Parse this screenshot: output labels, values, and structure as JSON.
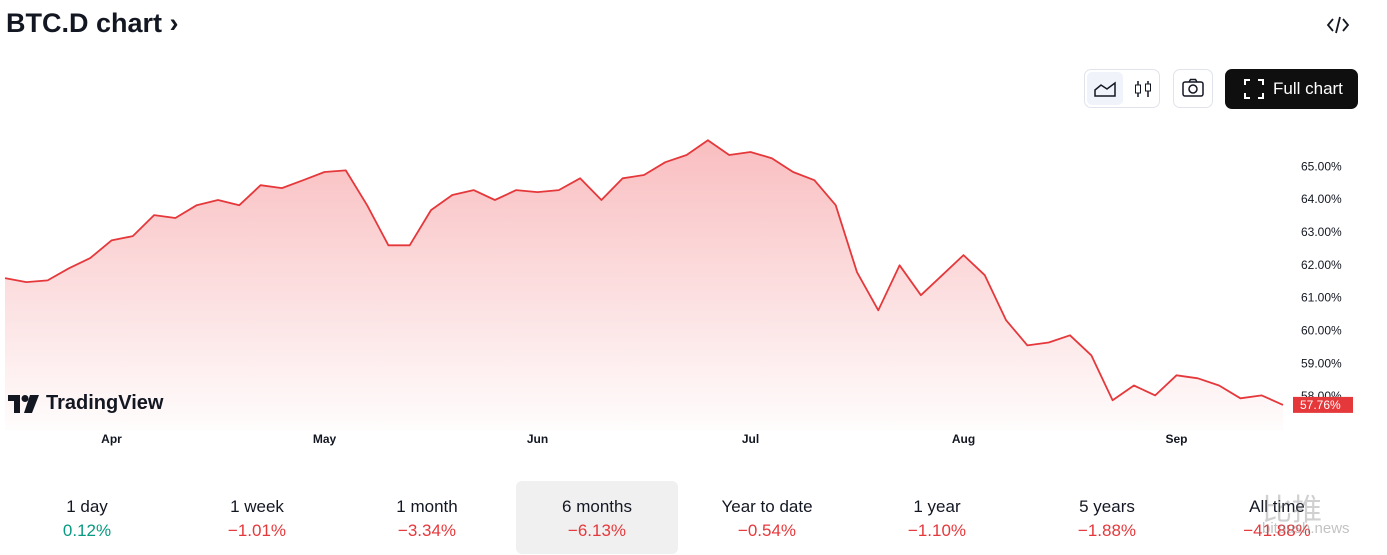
{
  "header": {
    "title": "BTC.D chart ›",
    "full_chart": "Full chart"
  },
  "branding": {
    "logo": "TradingView",
    "watermark": "比推",
    "watermark_site": "bitpush.news"
  },
  "chart_data": {
    "type": "area",
    "color": "#e5383b",
    "grid": false,
    "categories": [
      null,
      null,
      null,
      null,
      null,
      "Apr",
      null,
      null,
      null,
      null,
      null,
      null,
      null,
      null,
      null,
      "May",
      null,
      null,
      null,
      null,
      null,
      null,
      null,
      null,
      null,
      "Jun",
      null,
      null,
      null,
      null,
      null,
      null,
      null,
      null,
      null,
      "Jul",
      null,
      null,
      null,
      null,
      null,
      null,
      null,
      null,
      null,
      "Aug",
      null,
      null,
      null,
      null,
      null,
      null,
      null,
      null,
      null,
      "Sep",
      null,
      null,
      null,
      null,
      null
    ],
    "values": [
      61.62,
      61.5,
      61.55,
      61.92,
      62.23,
      62.77,
      62.9,
      63.54,
      63.45,
      63.84,
      64.0,
      63.84,
      64.45,
      64.36,
      64.6,
      64.85,
      64.9,
      63.84,
      62.62,
      62.62,
      63.69,
      64.15,
      64.3,
      64.0,
      64.3,
      64.24,
      64.3,
      64.66,
      64.0,
      64.66,
      64.76,
      65.15,
      65.37,
      65.82,
      65.37,
      65.46,
      65.27,
      64.85,
      64.6,
      63.84,
      61.8,
      60.64,
      62.01,
      61.1,
      61.71,
      62.32,
      61.71,
      60.34,
      59.57,
      59.66,
      59.88,
      59.27,
      57.9,
      58.35,
      58.05,
      58.66,
      58.57,
      58.35,
      57.96,
      58.05,
      57.76
    ],
    "ylim": [
      57.3,
      66.13
    ],
    "yticks": [
      {
        "value": 58,
        "label": "58.00%"
      },
      {
        "value": 59,
        "label": "59.00%"
      },
      {
        "value": 60,
        "label": "60.00%"
      },
      {
        "value": 61,
        "label": "61.00%"
      },
      {
        "value": 62,
        "label": "62.00%"
      },
      {
        "value": 63,
        "label": "63.00%"
      },
      {
        "value": 64,
        "label": "64.00%"
      },
      {
        "value": 65,
        "label": "65.00%"
      }
    ],
    "last_value": {
      "value": 57.76,
      "label": "57.76%"
    }
  },
  "performance": [
    {
      "label": "1 day",
      "value": "0.12%"
    },
    {
      "label": "1 week",
      "value": "−1.01%"
    },
    {
      "label": "1 month",
      "value": "−3.34%"
    },
    {
      "label": "6 months",
      "value": "−6.13%",
      "selected": true
    },
    {
      "label": "Year to date",
      "value": "−0.54%"
    },
    {
      "label": "1 year",
      "value": "−1.10%"
    },
    {
      "label": "5 years",
      "value": "−1.88%"
    },
    {
      "label": "All time",
      "value": "−41.88%"
    }
  ]
}
